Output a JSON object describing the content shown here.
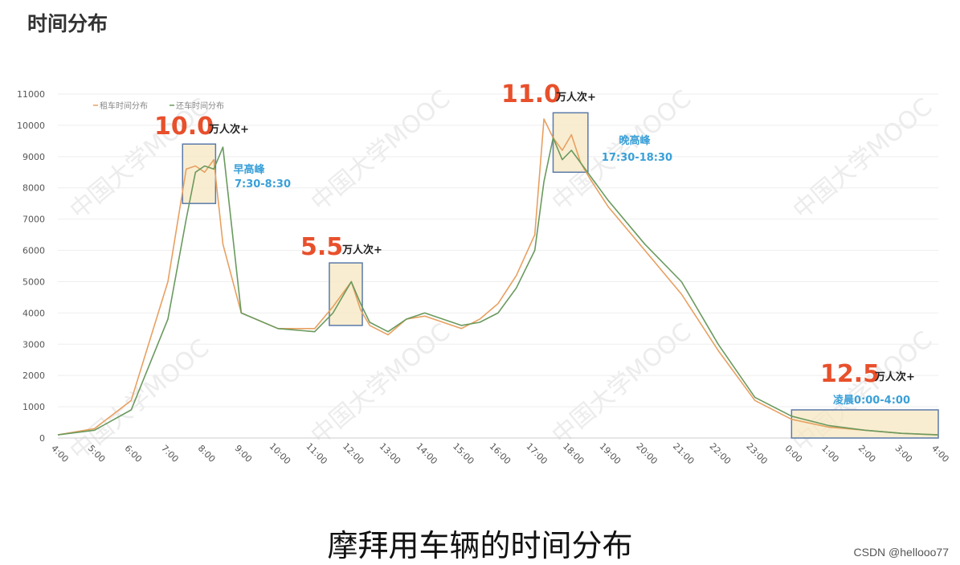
{
  "header": {
    "title": "时间分布"
  },
  "caption": "摩拜用车辆的时间分布",
  "credit": "CSDN @hellooo77",
  "watermark": "中国大学MOOC",
  "colors": {
    "rent": "#e8a060",
    "return": "#6a9a5e",
    "annotation_number": "#e8502c",
    "peak_label": "#3aa0d8",
    "highlight_fill": "#f6e7c2",
    "highlight_border": "#5b7aa8"
  },
  "chart_data": {
    "type": "line",
    "title": "",
    "xlabel": "",
    "ylabel": "",
    "ylim": [
      0,
      11000
    ],
    "yticks": [
      0,
      1000,
      2000,
      3000,
      4000,
      5000,
      6000,
      7000,
      8000,
      9000,
      10000,
      11000
    ],
    "grid": true,
    "legend_position": "top-left",
    "x_hours": [
      4,
      5,
      6,
      7,
      7.5,
      7.75,
      8,
      8.25,
      8.5,
      9,
      10,
      11,
      11.5,
      11.75,
      12,
      12.25,
      12.5,
      13,
      13.5,
      14,
      14.5,
      15,
      15.5,
      16,
      16.5,
      17,
      17.25,
      17.5,
      17.75,
      18,
      18.25,
      18.5,
      19,
      20,
      21,
      22,
      23,
      24,
      25,
      26,
      27,
      28
    ],
    "xtick_labels": [
      "4:00",
      "5:00",
      "6:00",
      "7:00",
      "8:00",
      "9:00",
      "10:00",
      "11:00",
      "12:00",
      "13:00",
      "14:00",
      "15:00",
      "16:00",
      "17:00",
      "18:00",
      "19:00",
      "20:00",
      "21:00",
      "22:00",
      "23:00",
      "0:00",
      "1:00",
      "2:00",
      "3:00",
      "4:00"
    ],
    "series": [
      {
        "name": "租车时间分布",
        "color": "#e8a060",
        "values": [
          100,
          300,
          1200,
          5000,
          8600,
          8700,
          8500,
          8900,
          6200,
          4000,
          3500,
          3500,
          4200,
          4600,
          5000,
          4100,
          3600,
          3300,
          3800,
          3900,
          3700,
          3500,
          3800,
          4300,
          5200,
          6500,
          10200,
          9600,
          9200,
          9700,
          8800,
          8300,
          7400,
          6000,
          4600,
          2800,
          1200,
          600,
          350,
          250,
          150,
          100
        ]
      },
      {
        "name": "还车时间分布",
        "color": "#6a9a5e",
        "values": [
          100,
          250,
          900,
          3800,
          7000,
          8500,
          8700,
          8600,
          9300,
          4000,
          3500,
          3400,
          4000,
          4500,
          5000,
          4300,
          3700,
          3400,
          3800,
          4000,
          3800,
          3600,
          3700,
          4000,
          4800,
          6000,
          8200,
          9600,
          8900,
          9200,
          8800,
          8400,
          7600,
          6200,
          5000,
          3000,
          1300,
          700,
          400,
          250,
          150,
          100
        ]
      }
    ],
    "annotations": [
      {
        "value": "10.0",
        "unit": "万人次+",
        "label": "早高峰",
        "time_range": "7:30-8:30",
        "x0": 7.4,
        "x1": 8.3,
        "y0": 7500,
        "y1": 9400
      },
      {
        "value": "5.5",
        "unit": "万人次+",
        "label": "",
        "time_range": "",
        "x0": 11.4,
        "x1": 12.3,
        "y0": 3600,
        "y1": 5600
      },
      {
        "value": "11.0",
        "unit": "万人次+",
        "label": "晚高峰",
        "time_range": "17:30-18:30",
        "x0": 17.5,
        "x1": 18.45,
        "y0": 8500,
        "y1": 10400
      },
      {
        "value": "12.5",
        "unit": "万人次+",
        "label": "",
        "time_range": "凌晨0:00-4:00",
        "x0": 24,
        "x1": 28,
        "y0": 0,
        "y1": 900
      }
    ]
  }
}
